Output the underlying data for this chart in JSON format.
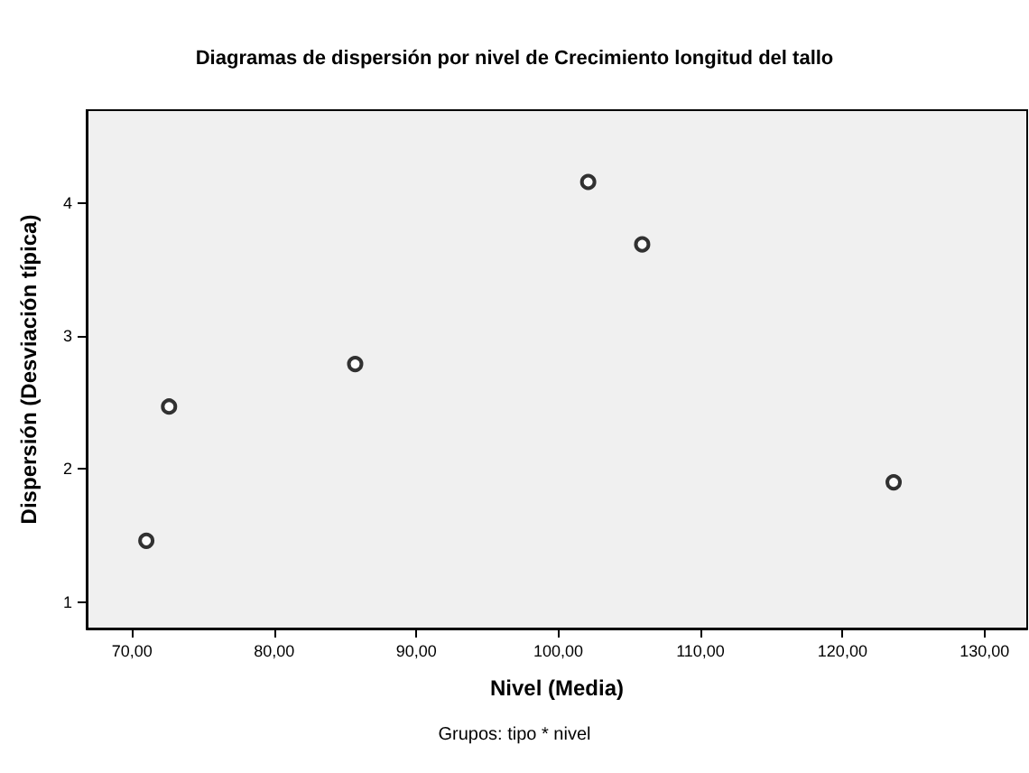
{
  "chart_data": {
    "type": "scatter",
    "title": "Diagramas de dispersión por nivel de Crecimiento longitud del tallo",
    "xlabel": "Nivel (Media)",
    "ylabel": "Dispersión (Desviación típica)",
    "annotations": [
      "Grupos: tipo * nivel"
    ],
    "series": [
      {
        "color": "#000000",
        "x": [
          71.0,
          72.6,
          85.7,
          102.1,
          105.9,
          123.6
        ],
        "values": [
          1.46,
          2.47,
          2.79,
          4.16,
          3.69,
          1.9
        ]
      }
    ],
    "xlim": [
      66.8,
      133
    ],
    "ylim": [
      0.8,
      4.7
    ],
    "xticks": [
      {
        "value": 70,
        "label": "70,00"
      },
      {
        "value": 80,
        "label": "80,00"
      },
      {
        "value": 90,
        "label": "90,00"
      },
      {
        "value": 100,
        "label": "100,00"
      },
      {
        "value": 110,
        "label": "110,00"
      },
      {
        "value": 120,
        "label": "120,00"
      },
      {
        "value": 130,
        "label": "130,00"
      }
    ],
    "yticks": [
      1,
      2,
      3,
      4
    ],
    "marker": "circle",
    "grid": false
  }
}
